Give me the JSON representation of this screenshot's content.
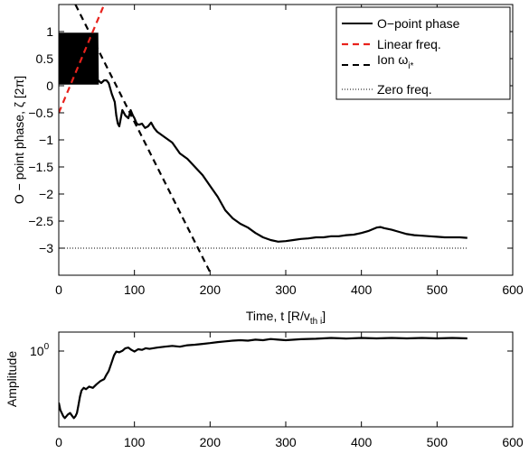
{
  "chart_data": [
    {
      "type": "line",
      "title": "",
      "xlabel_main": "Time, t [R/v",
      "xlabel_sub": "th i",
      "xlabel_close": "]",
      "ylabel": "O − point phase, ζ [2π]",
      "xlim": [
        0,
        600
      ],
      "ylim": [
        -3.5,
        1.5
      ],
      "xticks": [
        0,
        100,
        200,
        300,
        400,
        500,
        600
      ],
      "xtick_labels": [
        "0",
        "100",
        "200",
        "300",
        "400",
        "500",
        "600"
      ],
      "yticks": [
        1,
        0.5,
        0,
        -0.5,
        -1,
        -1.5,
        -2,
        -2.5,
        -3
      ],
      "ytick_labels": [
        "1",
        "0.5",
        "0",
        "−0.5",
        "−1",
        "−1.5",
        "−2",
        "−2.5",
        "−3"
      ],
      "grid": false,
      "legend_position": "top-right",
      "legend": [
        {
          "label": "O−point phase",
          "color": "#000000",
          "style": "solid"
        },
        {
          "label": "Linear freq.",
          "color": "#e8221c",
          "style": "dashed"
        },
        {
          "label": "Ion ω",
          "sub": "i*",
          "color": "#000000",
          "style": "dashed"
        },
        {
          "label": "Zero freq.",
          "color": "#000000",
          "style": "dotted"
        }
      ],
      "series": [
        {
          "name": "O−point phase",
          "color": "#000000",
          "style": "solid",
          "oscillation": {
            "x_start": 0,
            "x_end": 52,
            "y_min": 0.02,
            "y_max": 0.98
          },
          "x": [
            52,
            56,
            60,
            63,
            66,
            70,
            74,
            76,
            78,
            80,
            82,
            84,
            86,
            88,
            92,
            95,
            98,
            100,
            103,
            106,
            110,
            114,
            118,
            122,
            126,
            130,
            140,
            150,
            160,
            170,
            180,
            190,
            200,
            210,
            220,
            230,
            240,
            250,
            260,
            270,
            280,
            290,
            300,
            310,
            320,
            330,
            340,
            350,
            360,
            370,
            380,
            390,
            400,
            410,
            420,
            425,
            430,
            440,
            450,
            460,
            470,
            480,
            490,
            500,
            510,
            520,
            530,
            540
          ],
          "y": [
            0.1,
            0.05,
            0.1,
            0.1,
            0.05,
            -0.15,
            -0.3,
            -0.55,
            -0.7,
            -0.75,
            -0.6,
            -0.45,
            -0.5,
            -0.55,
            -0.6,
            -0.45,
            -0.55,
            -0.6,
            -0.7,
            -0.72,
            -0.7,
            -0.78,
            -0.75,
            -0.68,
            -0.78,
            -0.85,
            -0.95,
            -1.05,
            -1.25,
            -1.35,
            -1.5,
            -1.65,
            -1.85,
            -2.05,
            -2.3,
            -2.45,
            -2.55,
            -2.62,
            -2.72,
            -2.8,
            -2.85,
            -2.88,
            -2.87,
            -2.85,
            -2.83,
            -2.82,
            -2.8,
            -2.8,
            -2.78,
            -2.78,
            -2.76,
            -2.75,
            -2.72,
            -2.68,
            -2.62,
            -2.61,
            -2.63,
            -2.66,
            -2.7,
            -2.74,
            -2.76,
            -2.77,
            -2.78,
            -2.79,
            -2.8,
            -2.8,
            -2.8,
            -2.81
          ]
        },
        {
          "name": "Linear freq.",
          "color": "#e8221c",
          "style": "dashed",
          "x": [
            0,
            60
          ],
          "y": [
            -0.5,
            1.5
          ]
        },
        {
          "name": "Ion ωi*",
          "color": "#000000",
          "style": "dashed",
          "x": [
            22,
            202
          ],
          "y": [
            1.5,
            -3.5
          ]
        },
        {
          "name": "Zero freq.",
          "color": "#000000",
          "style": "dotted",
          "x": [
            0,
            540
          ],
          "y": [
            -3.0,
            -3.0
          ]
        }
      ]
    },
    {
      "type": "line",
      "title": "",
      "xlabel": "",
      "ylabel": "Amplitude",
      "xlim": [
        0,
        600
      ],
      "yscale": "log",
      "xticks": [
        0,
        100,
        200,
        300,
        400,
        500,
        600
      ],
      "xtick_labels": [
        "0",
        "100",
        "200",
        "300",
        "400",
        "500",
        "600"
      ],
      "ytick_label_base": "10",
      "ytick_label_exp": "0",
      "grid": false,
      "series": [
        {
          "name": "Amplitude",
          "color": "#000000",
          "style": "solid",
          "x": [
            0,
            2,
            4,
            6,
            8,
            10,
            12,
            15,
            18,
            20,
            22,
            24,
            26,
            28,
            30,
            33,
            36,
            40,
            45,
            50,
            55,
            60,
            63,
            66,
            70,
            73,
            76,
            80,
            84,
            88,
            92,
            96,
            100,
            105,
            110,
            115,
            120,
            130,
            140,
            150,
            160,
            170,
            180,
            190,
            200,
            210,
            220,
            230,
            240,
            250,
            260,
            270,
            280,
            290,
            300,
            320,
            340,
            360,
            380,
            400,
            420,
            440,
            460,
            480,
            500,
            520,
            540
          ],
          "y": [
            0.13,
            0.1,
            0.09,
            0.08,
            0.075,
            0.08,
            0.085,
            0.09,
            0.08,
            0.075,
            0.08,
            0.09,
            0.12,
            0.16,
            0.2,
            0.22,
            0.21,
            0.23,
            0.22,
            0.25,
            0.28,
            0.3,
            0.35,
            0.4,
            0.55,
            0.7,
            0.8,
            0.78,
            0.82,
            0.9,
            0.92,
            0.85,
            0.8,
            0.87,
            0.85,
            0.9,
            0.88,
            0.92,
            0.95,
            0.98,
            0.95,
            1.0,
            1.02,
            1.05,
            1.08,
            1.12,
            1.15,
            1.18,
            1.2,
            1.18,
            1.22,
            1.2,
            1.25,
            1.22,
            1.2,
            1.24,
            1.26,
            1.3,
            1.27,
            1.3,
            1.28,
            1.3,
            1.28,
            1.3,
            1.28,
            1.3,
            1.28
          ]
        }
      ]
    }
  ]
}
